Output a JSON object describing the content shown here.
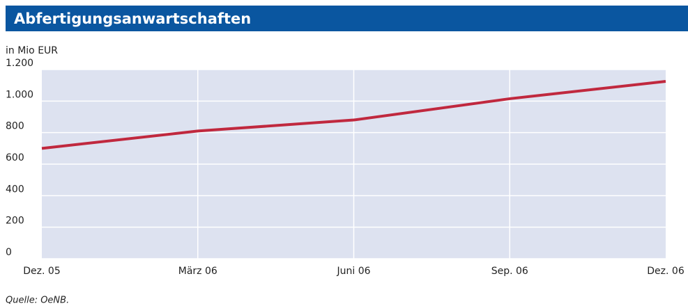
{
  "chart_data": {
    "type": "line",
    "title": "Abfertigungsanwartschaften",
    "y_label": "in Mio EUR",
    "categories": [
      "Dez. 05",
      "März 06",
      "Juni 06",
      "Sep. 06",
      "Dez. 06"
    ],
    "series": [
      {
        "name": "Abfertigungsanwartschaften",
        "color": "#c0283e",
        "values": [
          700,
          810,
          880,
          1015,
          1125
        ]
      }
    ],
    "ylim": [
      0,
      1200
    ],
    "yticks": [
      0,
      200,
      400,
      600,
      800,
      {
        "value": 1000,
        "label": "1.000"
      },
      {
        "value": 1200,
        "label": "1.200"
      }
    ],
    "grid": true,
    "background": "#dde2f0",
    "source": "Quelle: OeNB."
  }
}
